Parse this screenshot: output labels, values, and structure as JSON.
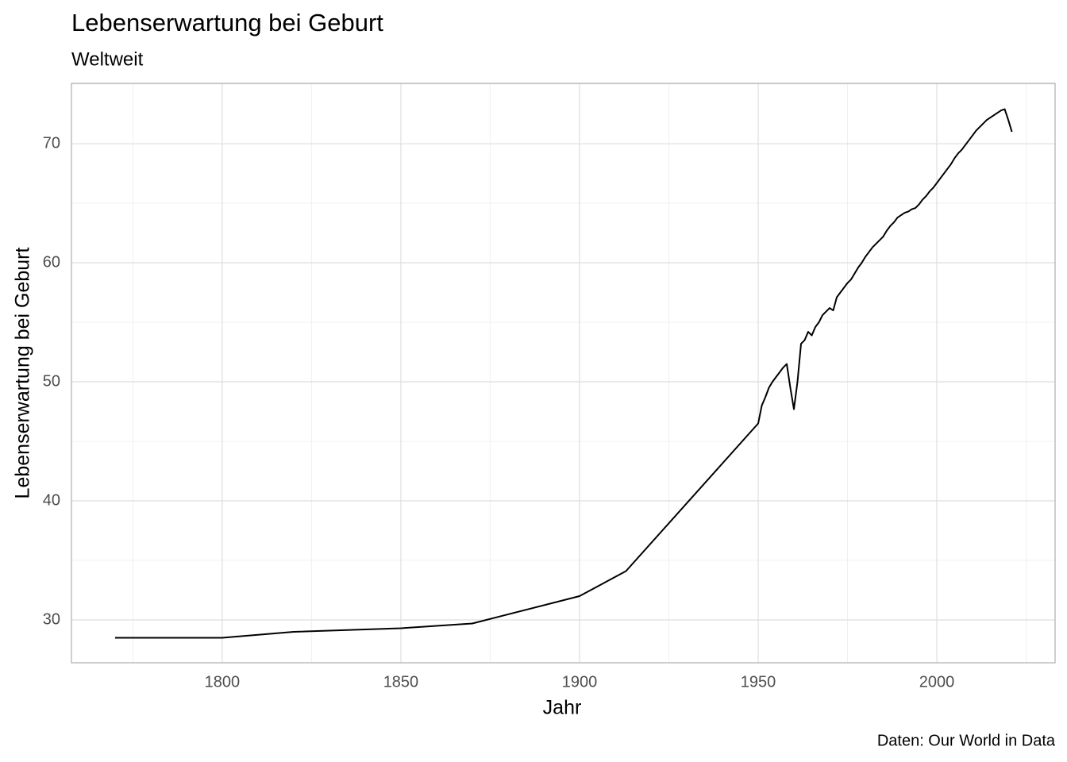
{
  "chart_data": {
    "type": "line",
    "title": "Lebenserwartung bei Geburt",
    "subtitle": "Weltweit",
    "x_label": "Jahr",
    "y_label": "Lebenserwartung bei Geburt",
    "caption": "Daten: Our World in Data",
    "color": "#000000",
    "grid": true,
    "x": [
      1770,
      1800,
      1820,
      1850,
      1870,
      1900,
      1913,
      1950,
      1951,
      1952,
      1953,
      1954,
      1955,
      1956,
      1957,
      1958,
      1959,
      1960,
      1961,
      1962,
      1963,
      1964,
      1965,
      1966,
      1967,
      1968,
      1969,
      1970,
      1971,
      1972,
      1973,
      1974,
      1975,
      1976,
      1977,
      1978,
      1979,
      1980,
      1981,
      1982,
      1983,
      1984,
      1985,
      1986,
      1987,
      1988,
      1989,
      1990,
      1991,
      1992,
      1993,
      1994,
      1995,
      1996,
      1997,
      1998,
      1999,
      2000,
      2001,
      2002,
      2003,
      2004,
      2005,
      2006,
      2007,
      2008,
      2009,
      2010,
      2011,
      2012,
      2013,
      2014,
      2015,
      2016,
      2017,
      2018,
      2019,
      2020,
      2021
    ],
    "values": [
      28.5,
      28.5,
      29.0,
      29.3,
      29.7,
      32.0,
      34.1,
      46.5,
      48.0,
      48.7,
      49.5,
      50.0,
      50.4,
      50.8,
      51.2,
      51.5,
      49.5,
      47.7,
      50.0,
      53.2,
      53.5,
      54.2,
      53.9,
      54.6,
      55.0,
      55.6,
      55.9,
      56.2,
      56.0,
      57.1,
      57.5,
      57.9,
      58.3,
      58.6,
      59.1,
      59.6,
      60.0,
      60.5,
      60.9,
      61.3,
      61.6,
      61.9,
      62.2,
      62.7,
      63.1,
      63.4,
      63.8,
      64.0,
      64.2,
      64.3,
      64.5,
      64.6,
      64.9,
      65.3,
      65.6,
      66.0,
      66.3,
      66.7,
      67.1,
      67.5,
      67.9,
      68.3,
      68.8,
      69.2,
      69.5,
      69.9,
      70.3,
      70.7,
      71.1,
      71.4,
      71.7,
      72.0,
      72.2,
      72.4,
      72.6,
      72.8,
      72.9,
      72.0,
      71.0
    ],
    "xlim": [
      1757.8,
      2033.1
    ],
    "ylim": [
      26.4,
      75.07
    ],
    "xticks": [
      1800,
      1850,
      1900,
      1950,
      2000
    ],
    "yticks": [
      30,
      40,
      50,
      60,
      70
    ],
    "xminorticks": [
      1775,
      1825,
      1875,
      1925,
      1975,
      2025
    ],
    "yminorticks": [
      35,
      45,
      55,
      65,
      75
    ]
  }
}
